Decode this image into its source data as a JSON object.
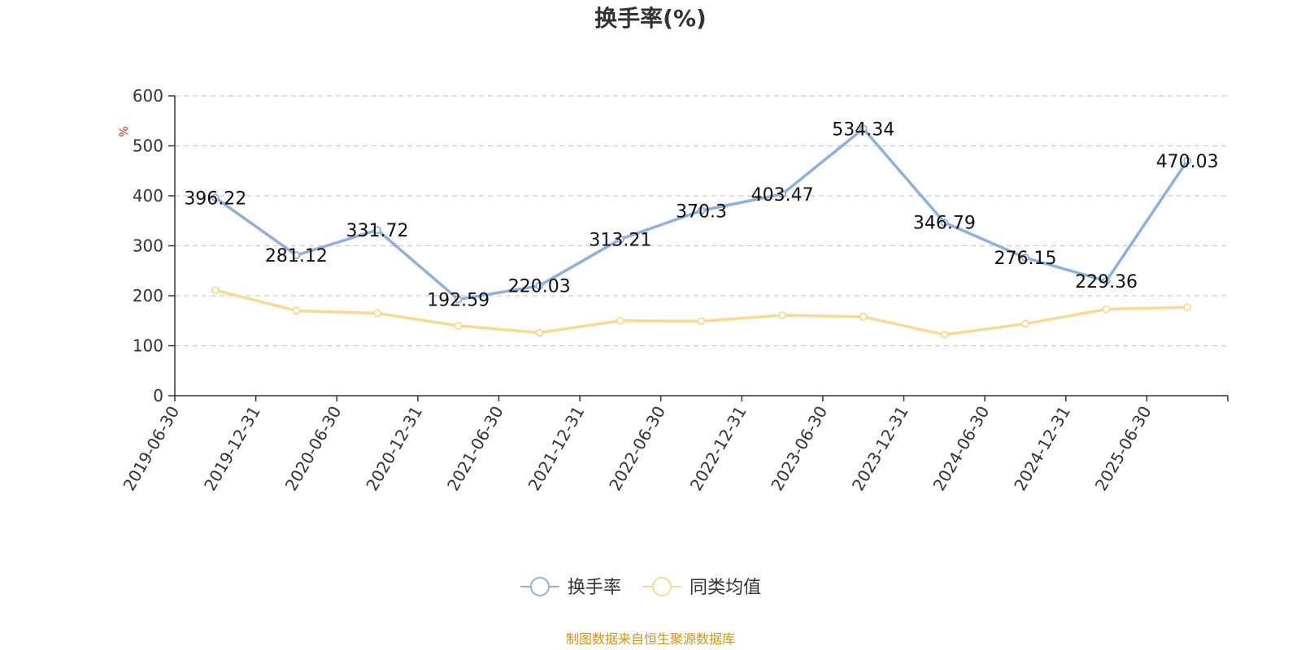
{
  "chart_data": {
    "type": "line",
    "title": "换手率(%)",
    "ylabel": "%",
    "ylim": [
      0,
      600
    ],
    "yticks": [
      0,
      100,
      200,
      300,
      400,
      500,
      600
    ],
    "grid": true,
    "legend_position": "bottom",
    "categories": [
      "2019-06-30",
      "2019-12-31",
      "2020-06-30",
      "2020-12-31",
      "2021-06-30",
      "2021-12-31",
      "2022-06-30",
      "2022-12-31",
      "2023-06-30",
      "2023-12-31",
      "2024-06-30",
      "2024-12-31",
      "2025-06-30"
    ],
    "series": [
      {
        "name": "换手率",
        "color": "#8eb0db",
        "values": [
          396.22,
          281.12,
          331.72,
          192.59,
          220.03,
          313.21,
          370.3,
          403.47,
          534.34,
          346.79,
          276.15,
          229.36,
          470.03
        ],
        "labels": [
          "396.22",
          "281.12",
          "331.72",
          "192.59",
          "220.03",
          "313.21",
          "370.3",
          "403.47",
          "534.34",
          "346.79",
          "276.15",
          "229.36",
          "470.03"
        ]
      },
      {
        "name": "同类均值",
        "color": "#fad993",
        "values": [
          211,
          170,
          165,
          140,
          126,
          150,
          149,
          161,
          158,
          122,
          144,
          173,
          177
        ]
      }
    ]
  },
  "source": "制图数据来自恒生聚源数据库"
}
